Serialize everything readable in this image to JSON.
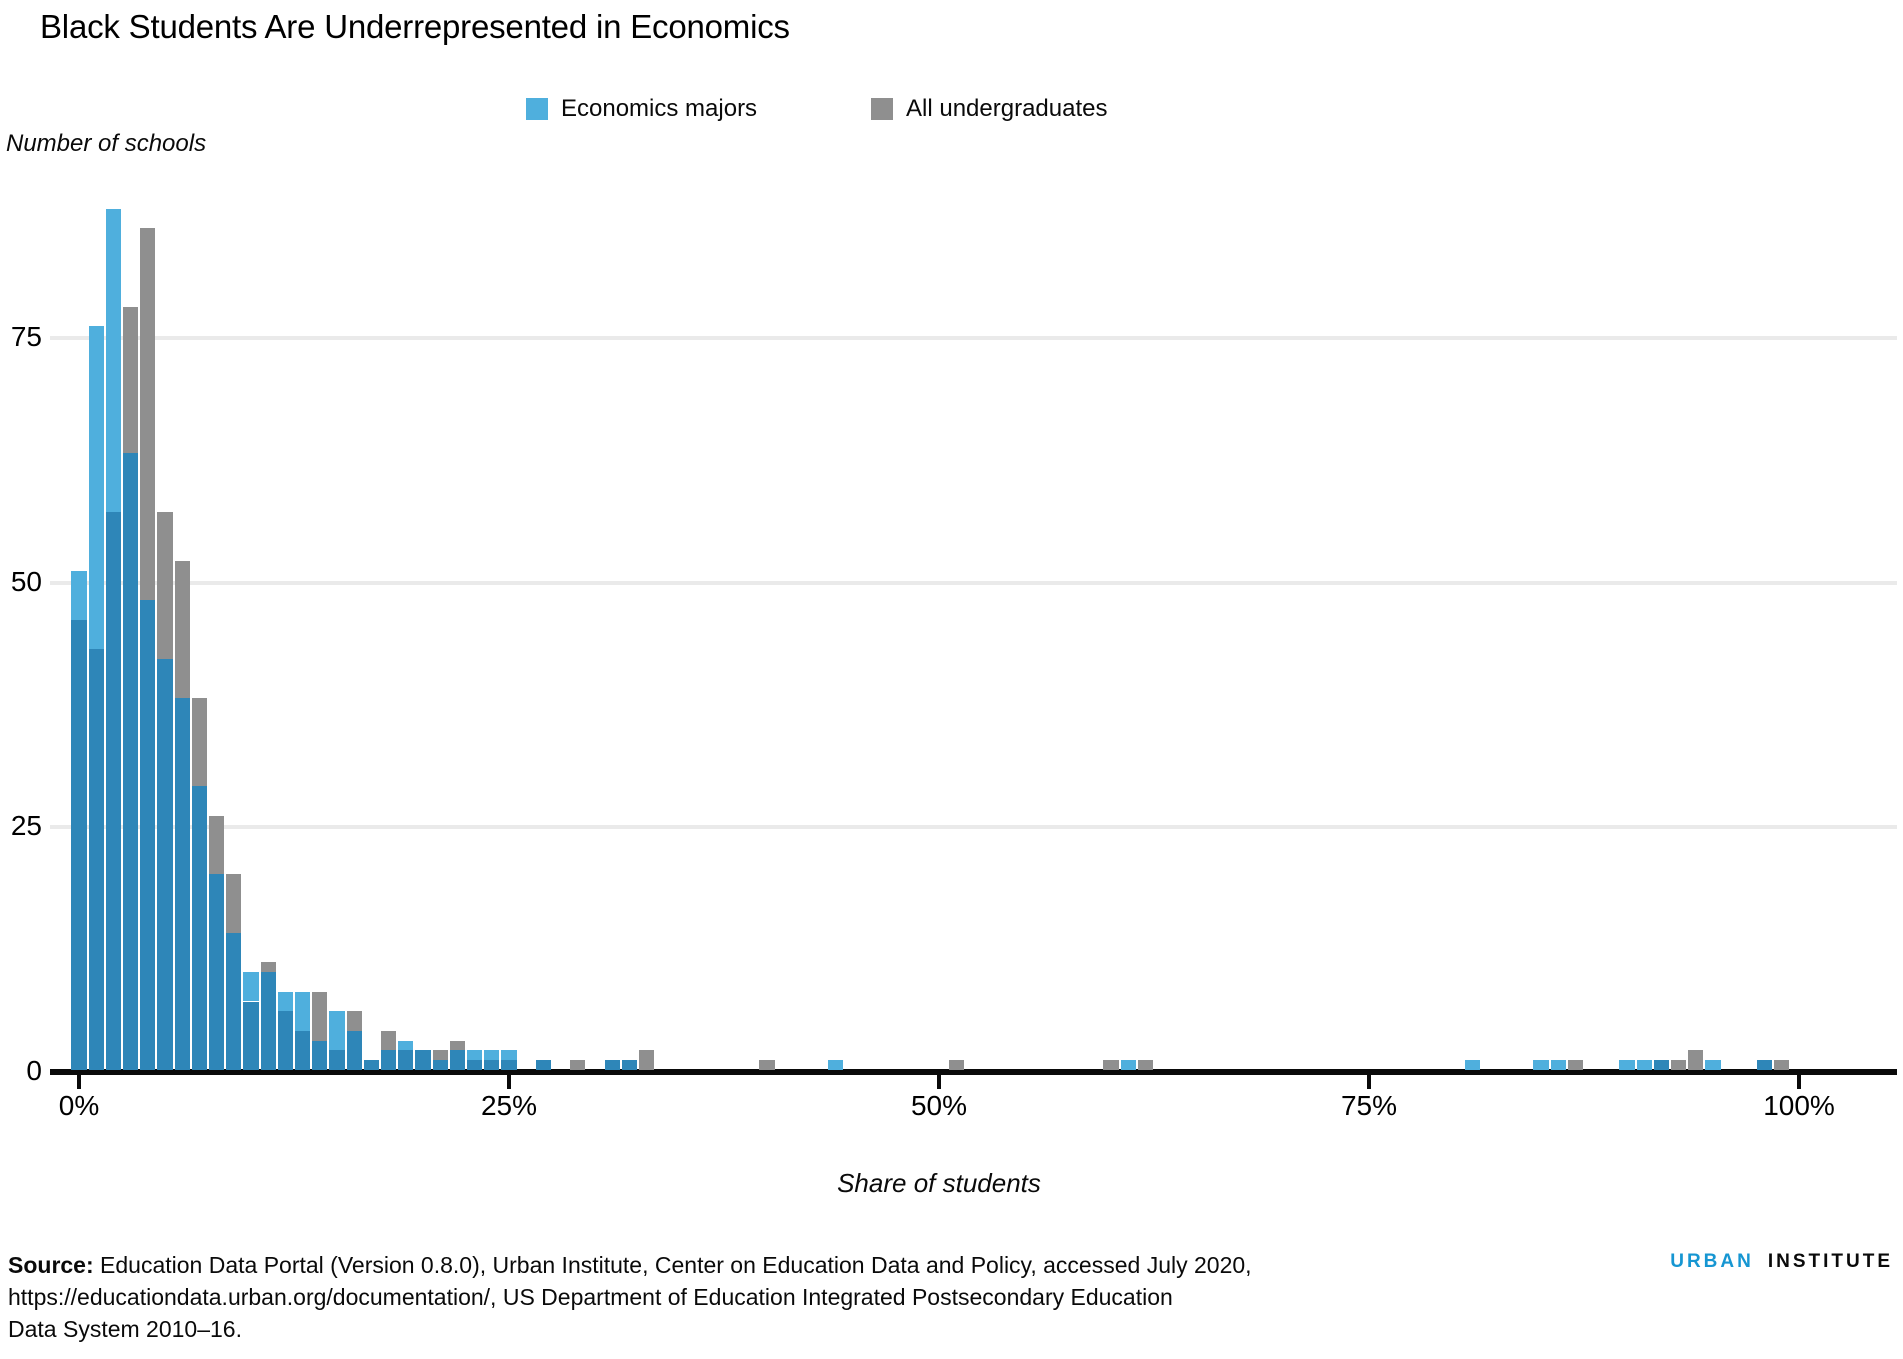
{
  "title": "Black Students Are Underrepresented in Economics",
  "legend": {
    "items": [
      {
        "label": "Economics majors",
        "color": "#4fafdd"
      },
      {
        "label": "All undergraduates",
        "color": "#8f8f8f"
      }
    ]
  },
  "y_axis": {
    "label": "Number of schools",
    "ticks": [
      75,
      50,
      25,
      0
    ]
  },
  "x_axis": {
    "label": "Share of students",
    "ticks": [
      {
        "label": "0%",
        "pct": 0
      },
      {
        "label": "25%",
        "pct": 25
      },
      {
        "label": "50%",
        "pct": 50
      },
      {
        "label": "75%",
        "pct": 75
      },
      {
        "label": "100%",
        "pct": 100
      }
    ]
  },
  "source": {
    "label": "Source:",
    "lines": [
      "Education Data Portal (Version 0.8.0), Urban Institute, Center on Education Data and Policy, accessed July 2020,",
      "https://educationdata.urban.org/documentation/, US Department of Education Integrated Postsecondary Education",
      "Data System 2010–16."
    ]
  },
  "logo": {
    "urban": "URBAN",
    "institute": "INSTITUTE"
  },
  "colors": {
    "econ_only": "#4fafdd",
    "all_only": "#8f8f8f",
    "overlap": "#2e86b8",
    "grid": "#eaeaea",
    "axis": "#0a0a0a",
    "brand_blue": "#1696d2"
  },
  "chart_data": {
    "type": "bar",
    "subtype": "overlapping-histogram",
    "title": "Black Students Are Underrepresented in Economics",
    "xlabel": "Share of students",
    "ylabel": "Number of schools",
    "xlim": [
      0,
      100
    ],
    "ylim": [
      0,
      90
    ],
    "grid": "horizontal",
    "legend_position": "top",
    "bin_width_pct": 1,
    "series": [
      {
        "name": "Economics majors",
        "key": "econ",
        "color": "#4fafdd"
      },
      {
        "name": "All undergraduates",
        "key": "all",
        "color": "#8f8f8f"
      }
    ],
    "bins": [
      {
        "pct": 0,
        "econ": 51,
        "all": 46
      },
      {
        "pct": 1,
        "econ": 76,
        "all": 43
      },
      {
        "pct": 2,
        "econ": 88,
        "all": 57
      },
      {
        "pct": 3,
        "econ": 63,
        "all": 78
      },
      {
        "pct": 4,
        "econ": 48,
        "all": 86
      },
      {
        "pct": 5,
        "econ": 42,
        "all": 57
      },
      {
        "pct": 6,
        "econ": 38,
        "all": 52
      },
      {
        "pct": 7,
        "econ": 29,
        "all": 38
      },
      {
        "pct": 8,
        "econ": 20,
        "all": 26
      },
      {
        "pct": 9,
        "econ": 14,
        "all": 20
      },
      {
        "pct": 10,
        "econ": 10,
        "all": 7
      },
      {
        "pct": 11,
        "econ": 10,
        "all": 11
      },
      {
        "pct": 12,
        "econ": 8,
        "all": 6
      },
      {
        "pct": 13,
        "econ": 8,
        "all": 4
      },
      {
        "pct": 14,
        "econ": 3,
        "all": 8
      },
      {
        "pct": 15,
        "econ": 6,
        "all": 2
      },
      {
        "pct": 16,
        "econ": 4,
        "all": 6
      },
      {
        "pct": 17,
        "econ": 1,
        "all": 1
      },
      {
        "pct": 18,
        "econ": 2,
        "all": 4
      },
      {
        "pct": 19,
        "econ": 3,
        "all": 2
      },
      {
        "pct": 20,
        "econ": 2,
        "all": 2
      },
      {
        "pct": 21,
        "econ": 1,
        "all": 2
      },
      {
        "pct": 22,
        "econ": 2,
        "all": 3
      },
      {
        "pct": 23,
        "econ": 2,
        "all": 1
      },
      {
        "pct": 24,
        "econ": 2,
        "all": 1
      },
      {
        "pct": 25,
        "econ": 2,
        "all": 1
      },
      {
        "pct": 27,
        "econ": 1,
        "all": 1
      },
      {
        "pct": 29,
        "econ": 0,
        "all": 1
      },
      {
        "pct": 31,
        "econ": 1,
        "all": 1
      },
      {
        "pct": 32,
        "econ": 1,
        "all": 1
      },
      {
        "pct": 33,
        "econ": 0,
        "all": 2
      },
      {
        "pct": 40,
        "econ": 0,
        "all": 1
      },
      {
        "pct": 44,
        "econ": 1,
        "all": 0
      },
      {
        "pct": 51,
        "econ": 0,
        "all": 1
      },
      {
        "pct": 60,
        "econ": 0,
        "all": 1
      },
      {
        "pct": 61,
        "econ": 1,
        "all": 0
      },
      {
        "pct": 62,
        "econ": 0,
        "all": 1
      },
      {
        "pct": 81,
        "econ": 1,
        "all": 0
      },
      {
        "pct": 85,
        "econ": 1,
        "all": 0
      },
      {
        "pct": 86,
        "econ": 1,
        "all": 0
      },
      {
        "pct": 87,
        "econ": 0,
        "all": 1
      },
      {
        "pct": 90,
        "econ": 1,
        "all": 0
      },
      {
        "pct": 91,
        "econ": 1,
        "all": 0
      },
      {
        "pct": 92,
        "econ": 1,
        "all": 1
      },
      {
        "pct": 93,
        "econ": 0,
        "all": 1
      },
      {
        "pct": 94,
        "econ": 0,
        "all": 2
      },
      {
        "pct": 95,
        "econ": 1,
        "all": 0
      },
      {
        "pct": 98,
        "econ": 1,
        "all": 1
      },
      {
        "pct": 99,
        "econ": 0,
        "all": 1
      }
    ]
  }
}
